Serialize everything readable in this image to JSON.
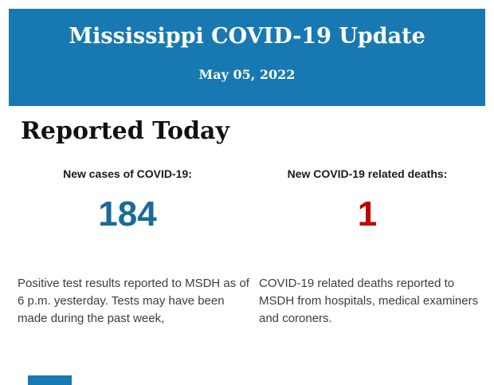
{
  "header": {
    "title": "Mississippi COVID-19 Update",
    "date": "May 05, 2022",
    "background_color": "#1879B2",
    "text_color": "#FFFFFF"
  },
  "section": {
    "heading": "Reported Today"
  },
  "stats": [
    {
      "label": "New cases of COVID-19:",
      "value": "184",
      "value_color": "#1B6A9B",
      "description": "Positive test results reported to MSDH as of 6 p.m. yesterday. Tests may have been made during the past week,"
    },
    {
      "label": "New COVID-19 related deaths:",
      "value": "1",
      "value_color": "#C00000",
      "description": "COVID-19 related deaths reported to MSDH from hospitals, medical examiners and coroners."
    }
  ],
  "footer": {
    "cutoff_banner_color": "#1879B2"
  }
}
